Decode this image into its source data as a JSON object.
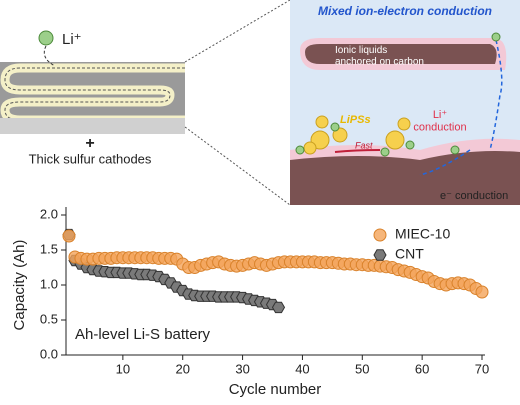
{
  "schematic": {
    "li_ion": "Li⁺",
    "plus": "+",
    "cathode_caption": "Thick sulfur cathodes",
    "panel_title": "Mixed ion-electron conduction",
    "ionic_liquids": "Ionic liquids\nanchored on carbon",
    "lipss": "LiPSs",
    "li_conduction": "Li⁺\nconduction",
    "fast": "Fast",
    "e_conduction": "e⁻  conduction"
  },
  "chart_data": {
    "type": "scatter",
    "x_label": "Cycle number",
    "y_label": "Capacity (Ah)",
    "annotation": "Ah-level Li-S battery",
    "x": [
      1,
      2,
      3,
      4,
      5,
      6,
      7,
      8,
      9,
      10,
      11,
      12,
      13,
      14,
      15,
      16,
      17,
      18,
      19,
      20,
      21,
      22,
      23,
      24,
      25,
      26,
      27,
      28,
      29,
      30,
      31,
      32,
      33,
      34,
      35,
      36,
      37,
      38,
      39,
      40,
      41,
      42,
      43,
      44,
      45,
      46,
      47,
      48,
      49,
      50,
      51,
      52,
      53,
      54,
      55,
      56,
      57,
      58,
      59,
      60,
      61,
      62,
      63,
      64,
      65,
      66,
      67,
      68,
      69,
      70
    ],
    "series": [
      {
        "name": "MIEC-10",
        "color": "#f4a45a",
        "edge": "#d9822b",
        "marker": "circle",
        "values": [
          1.7,
          1.4,
          1.38,
          1.37,
          1.37,
          1.38,
          1.38,
          1.38,
          1.39,
          1.39,
          1.39,
          1.39,
          1.39,
          1.39,
          1.39,
          1.38,
          1.38,
          1.38,
          1.37,
          1.3,
          1.25,
          1.25,
          1.28,
          1.3,
          1.32,
          1.33,
          1.3,
          1.28,
          1.27,
          1.28,
          1.3,
          1.32,
          1.3,
          1.28,
          1.3,
          1.32,
          1.33,
          1.33,
          1.33,
          1.33,
          1.33,
          1.33,
          1.32,
          1.32,
          1.32,
          1.31,
          1.3,
          1.3,
          1.29,
          1.29,
          1.28,
          1.28,
          1.27,
          1.26,
          1.25,
          1.22,
          1.2,
          1.18,
          1.15,
          1.12,
          1.1,
          1.05,
          1.02,
          1.0,
          1.02,
          1.03,
          1.02,
          1.0,
          0.95,
          0.9
        ]
      },
      {
        "name": "CNT",
        "color": "#7a7a7a",
        "edge": "#333333",
        "marker": "hexagon",
        "values": [
          1.72,
          1.35,
          1.3,
          1.25,
          1.22,
          1.2,
          1.19,
          1.18,
          1.18,
          1.17,
          1.17,
          1.16,
          1.15,
          1.15,
          1.14,
          1.12,
          1.08,
          1.03,
          0.97,
          0.92,
          0.87,
          0.85,
          0.84,
          0.84,
          0.84,
          0.83,
          0.83,
          0.83,
          0.83,
          0.82,
          0.8,
          0.78,
          0.76,
          0.74,
          0.72,
          0.68,
          null,
          null,
          null,
          null,
          null,
          null,
          null,
          null,
          null,
          null,
          null,
          null,
          null,
          null,
          null,
          null,
          null,
          null,
          null,
          null,
          null,
          null,
          null,
          null,
          null,
          null,
          null,
          null,
          null,
          null,
          null,
          null,
          null,
          null
        ]
      }
    ],
    "xlim": [
      0.5,
      70.5
    ],
    "xticks": [
      10,
      20,
      30,
      40,
      50,
      60,
      70
    ],
    "ylim": [
      0,
      2.0
    ],
    "yticks": [
      {
        "value": 0,
        "label": "0.0"
      },
      0.5,
      {
        "value": 1.0,
        "label": "1.0"
      },
      1.5,
      {
        "value": 2.0,
        "label": "2.0"
      }
    ],
    "legend": "upper right",
    "grid": false
  }
}
